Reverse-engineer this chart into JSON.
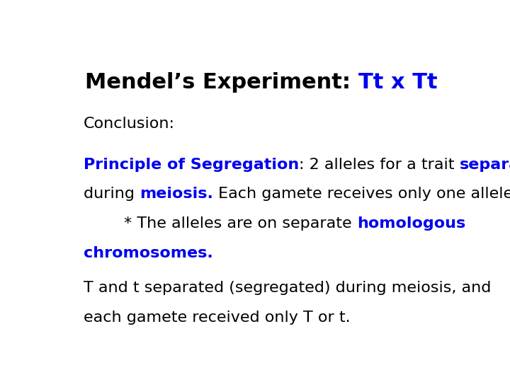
{
  "background_color": "#ffffff",
  "title_parts": [
    {
      "text": "Mendel’s Experiment: ",
      "color": "#000000",
      "bold": true
    },
    {
      "text": "Tt x Tt",
      "color": "#0000ee",
      "bold": true
    }
  ],
  "title_fontsize": 22,
  "conclusion_text": "Conclusion:",
  "conclusion_fontsize": 16,
  "body_fontsize": 16,
  "lines": [
    [
      {
        "text": "Principle of Segregation",
        "color": "#0000ee",
        "bold": true
      },
      {
        "text": ": 2 alleles for a trait ",
        "color": "#000000",
        "bold": false
      },
      {
        "text": "separate",
        "color": "#0000ee",
        "bold": true
      }
    ],
    [
      {
        "text": "during ",
        "color": "#000000",
        "bold": false
      },
      {
        "text": "meiosis.",
        "color": "#0000ee",
        "bold": true
      },
      {
        "text": " Each gamete receives only one allele.",
        "color": "#000000",
        "bold": false
      }
    ],
    [
      {
        "text": "        * The alleles are on separate ",
        "color": "#000000",
        "bold": false
      },
      {
        "text": "homologous",
        "color": "#0000ee",
        "bold": true
      }
    ],
    [
      {
        "text": "chromosomes.",
        "color": "#0000ee",
        "bold": true
      }
    ],
    [
      {
        "text": "",
        "color": "#000000",
        "bold": false
      }
    ],
    [
      {
        "text": "T and t separated (segregated) during meiosis, and",
        "color": "#000000",
        "bold": false
      }
    ],
    [
      {
        "text": "each gamete received only T or t.",
        "color": "#000000",
        "bold": false
      }
    ]
  ]
}
